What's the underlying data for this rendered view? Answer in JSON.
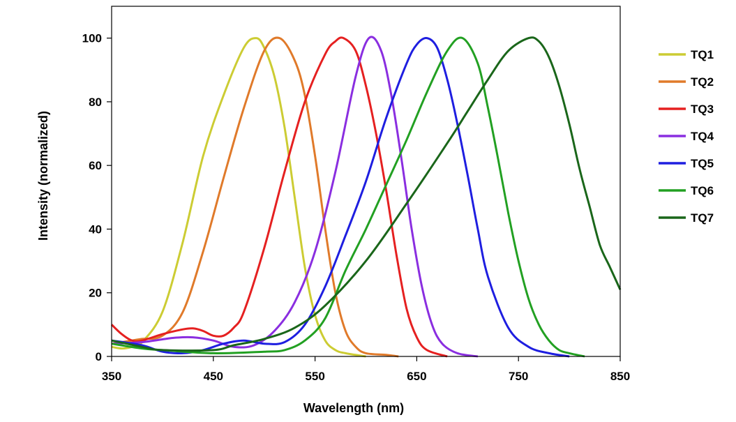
{
  "chart_data": {
    "type": "line",
    "xlabel": "Wavelength (nm)",
    "ylabel": "Intensity (normalized)",
    "xlim": [
      350,
      850
    ],
    "ylim": [
      0,
      110
    ],
    "xticks": [
      350,
      450,
      550,
      650,
      750,
      850
    ],
    "yticks": [
      0,
      20,
      40,
      60,
      80,
      100
    ],
    "grid": false,
    "legend": "right",
    "series": [
      {
        "name": "TQ1",
        "color": "#cccc33",
        "x": [
          350,
          360,
          370,
          380,
          400,
          420,
          440,
          460,
          480,
          492,
          500,
          510,
          520,
          530,
          540,
          550,
          560,
          570,
          580,
          600
        ],
        "y": [
          3,
          2.5,
          3,
          4.5,
          14,
          36,
          63,
          82,
          97,
          100,
          97,
          88,
          72,
          50,
          28,
          13,
          5,
          2,
          1,
          0
        ]
      },
      {
        "name": "TQ2",
        "color": "#e07a2a",
        "x": [
          350,
          370,
          380,
          400,
          420,
          440,
          460,
          480,
          500,
          515,
          530,
          540,
          550,
          560,
          570,
          580,
          590,
          600,
          620,
          632
        ],
        "y": [
          4,
          5,
          5.5,
          6.5,
          14,
          33,
          56,
          78,
          96,
          100,
          93,
          82,
          63,
          40,
          20,
          8,
          3,
          1,
          0.5,
          0
        ]
      },
      {
        "name": "TQ3",
        "color": "#e52020",
        "x": [
          350,
          360,
          370,
          380,
          400,
          420,
          430,
          440,
          450,
          460,
          470,
          480,
          500,
          520,
          540,
          560,
          570,
          578,
          590,
          600,
          610,
          620,
          630,
          640,
          650,
          660,
          680
        ],
        "y": [
          10,
          7,
          5,
          5,
          7,
          8.5,
          8.8,
          8,
          6.5,
          6.5,
          9,
          14,
          34,
          58,
          80,
          95,
          99,
          100,
          96,
          85,
          70,
          52,
          32,
          15,
          6,
          2,
          0
        ]
      },
      {
        "name": "TQ4",
        "color": "#8a2ee0",
        "x": [
          350,
          380,
          410,
          430,
          450,
          470,
          490,
          510,
          530,
          550,
          570,
          590,
          603,
          615,
          625,
          635,
          645,
          655,
          665,
          675,
          690,
          710
        ],
        "y": [
          4,
          4.5,
          5.8,
          6,
          5,
          3,
          3.5,
          8,
          17,
          33,
          58,
          88,
          100,
          96,
          82,
          62,
          40,
          22,
          10,
          4,
          1,
          0
        ]
      },
      {
        "name": "TQ5",
        "color": "#1e1ee0",
        "x": [
          350,
          380,
          400,
          420,
          440,
          460,
          480,
          500,
          520,
          540,
          560,
          580,
          600,
          620,
          640,
          650,
          660,
          670,
          680,
          690,
          700,
          710,
          720,
          740,
          760,
          780,
          800
        ],
        "y": [
          5,
          3.5,
          1.5,
          1,
          2,
          4,
          5,
          4,
          4.5,
          10,
          22,
          38,
          55,
          75,
          92,
          98,
          100,
          97,
          87,
          73,
          57,
          40,
          25,
          9,
          3,
          1,
          0
        ]
      },
      {
        "name": "TQ6",
        "color": "#22a022",
        "x": [
          350,
          380,
          400,
          450,
          500,
          520,
          540,
          560,
          580,
          600,
          620,
          640,
          660,
          680,
          695,
          710,
          720,
          730,
          740,
          750,
          760,
          770,
          780,
          790,
          800,
          815
        ],
        "y": [
          4,
          2.5,
          2,
          1,
          1.5,
          2,
          5,
          12,
          27,
          40,
          54,
          68,
          83,
          96,
          100,
          92,
          78,
          62,
          45,
          30,
          18,
          10,
          5,
          2,
          1,
          0
        ]
      },
      {
        "name": "TQ7",
        "color": "#1a661a",
        "x": [
          350,
          380,
          400,
          450,
          470,
          500,
          530,
          560,
          600,
          640,
          680,
          700,
          720,
          740,
          760,
          770,
          780,
          790,
          800,
          810,
          820,
          830,
          840,
          850
        ],
        "y": [
          5,
          3,
          2,
          2,
          3.5,
          5.5,
          9,
          16,
          30,
          48,
          67,
          77,
          87,
          96,
          100,
          99,
          94,
          85,
          73,
          59,
          47,
          35,
          28,
          21
        ]
      }
    ]
  }
}
